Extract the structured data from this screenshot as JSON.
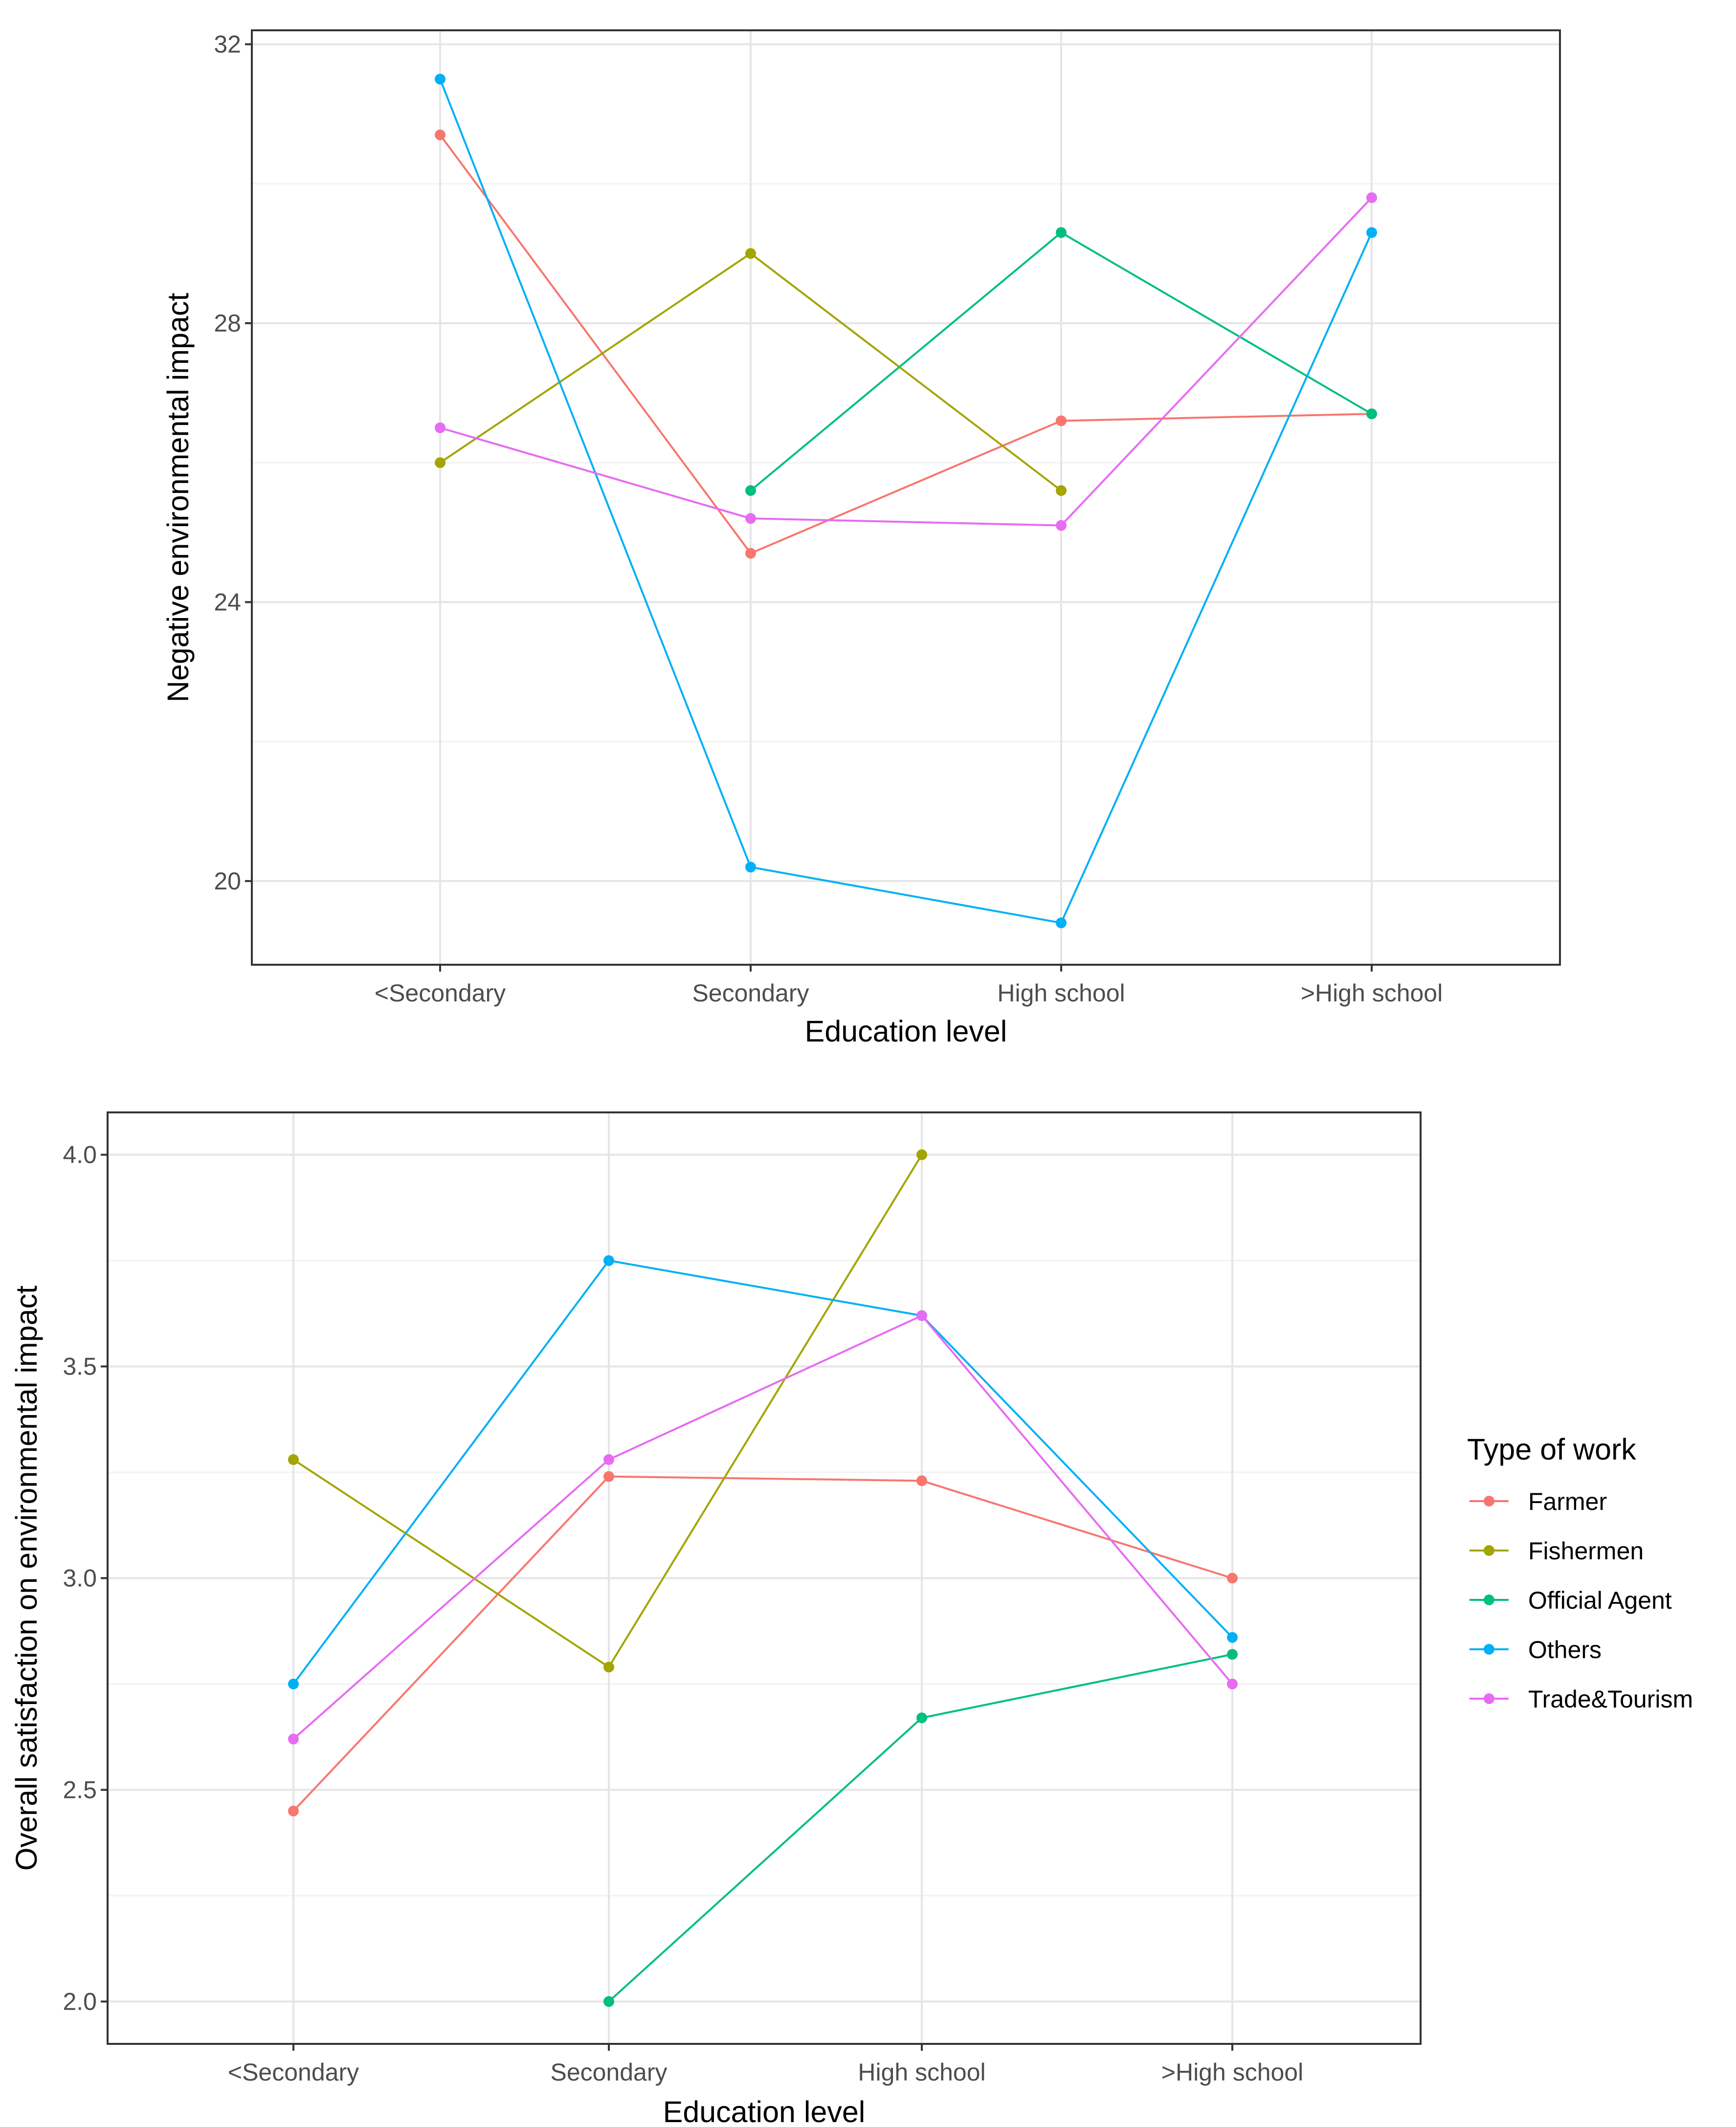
{
  "chart_data": [
    {
      "type": "line",
      "xlabel": "Education level",
      "ylabel": "Negative environmental impact",
      "categories": [
        "<Secondary",
        "Secondary",
        "High school",
        ">High school"
      ],
      "ylim": [
        18.8,
        32.2
      ],
      "yticks": [
        20,
        24,
        28,
        32
      ],
      "yminor": [
        22,
        26,
        30
      ],
      "grid": true,
      "series": [
        {
          "name": "Farmer",
          "values": [
            30.7,
            24.7,
            26.6,
            26.7
          ]
        },
        {
          "name": "Fishermen",
          "values": [
            26.0,
            29.0,
            25.6,
            null
          ]
        },
        {
          "name": "Official Agent",
          "values": [
            null,
            25.6,
            29.3,
            26.7
          ]
        },
        {
          "name": "Others",
          "values": [
            31.5,
            20.2,
            19.4,
            29.3
          ]
        },
        {
          "name": "Trade&Tourism",
          "values": [
            26.5,
            25.2,
            25.1,
            29.8
          ]
        }
      ]
    },
    {
      "type": "line",
      "xlabel": "Education level",
      "ylabel": "Overall satisfaction on environmental impact",
      "categories": [
        "<Secondary",
        "Secondary",
        "High school",
        ">High school"
      ],
      "ylim": [
        1.9,
        4.1
      ],
      "yticks": [
        "2.0",
        "2.5",
        "3.0",
        "3.5",
        "4.0"
      ],
      "yminor": [
        2.25,
        2.75,
        3.25,
        3.75
      ],
      "grid": true,
      "legend_position": "right",
      "series": [
        {
          "name": "Farmer",
          "values": [
            2.45,
            3.24,
            3.23,
            3.0
          ]
        },
        {
          "name": "Fishermen",
          "values": [
            3.28,
            2.79,
            4.0,
            null
          ]
        },
        {
          "name": "Official Agent",
          "values": [
            null,
            2.0,
            2.67,
            2.82
          ]
        },
        {
          "name": "Others",
          "values": [
            2.75,
            3.75,
            3.62,
            2.86
          ]
        },
        {
          "name": "Trade&Tourism",
          "values": [
            2.62,
            3.28,
            3.62,
            2.75
          ]
        }
      ]
    }
  ],
  "legend": {
    "title": "Type of work",
    "items": [
      {
        "name": "Farmer",
        "color": "#F8766D"
      },
      {
        "name": "Fishermen",
        "color": "#A3A500"
      },
      {
        "name": "Official Agent",
        "color": "#00BF7D"
      },
      {
        "name": "Others",
        "color": "#00B0F6"
      },
      {
        "name": "Trade&Tourism",
        "color": "#E76BF3"
      }
    ]
  }
}
